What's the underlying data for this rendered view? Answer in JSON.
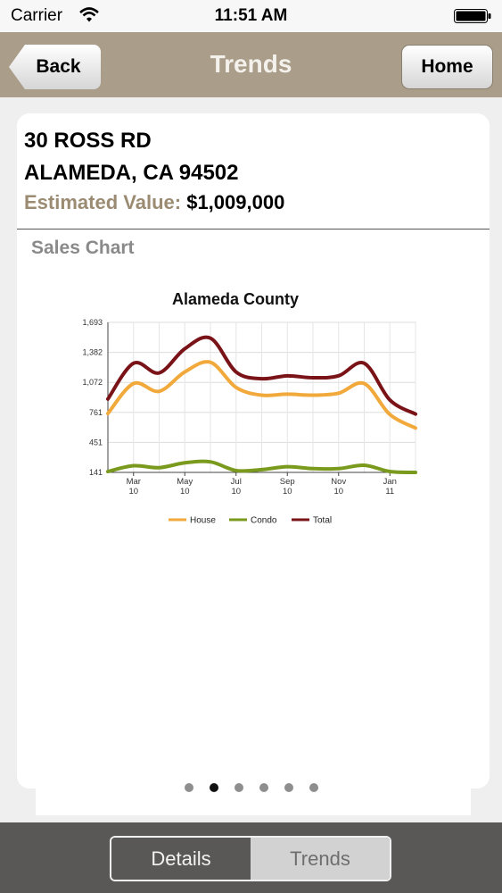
{
  "status_bar": {
    "carrier": "Carrier",
    "time": "11:51 AM",
    "icons": [
      "wifi-icon",
      "battery-icon"
    ]
  },
  "nav": {
    "title": "Trends",
    "back_label": "Back",
    "home_label": "Home"
  },
  "property": {
    "address_line1": "30  ROSS RD",
    "address_line2": "ALAMEDA, CA 94502",
    "estimated_label": "Estimated Value:",
    "estimated_value": "$1,009,000"
  },
  "section": {
    "title": "Sales Chart"
  },
  "chart_data": {
    "type": "line",
    "title": "Alameda County",
    "xlabel": "",
    "ylabel": "",
    "ylim": [
      141,
      1693
    ],
    "y_ticks": [
      "1,693",
      "1,382",
      "1,072",
      "761",
      "451",
      "141"
    ],
    "x_ticks": [
      {
        "line1": "Mar",
        "line2": "10"
      },
      {
        "line1": "May",
        "line2": "10"
      },
      {
        "line1": "Jul",
        "line2": "10"
      },
      {
        "line1": "Sep",
        "line2": "10"
      },
      {
        "line1": "Nov",
        "line2": "10"
      },
      {
        "line1": "Jan",
        "line2": "11"
      }
    ],
    "x": [
      "Feb 10",
      "Mar 10",
      "Apr 10",
      "May 10",
      "Jun 10",
      "Jul 10",
      "Aug 10",
      "Sep 10",
      "Oct 10",
      "Nov 10",
      "Dec 10",
      "Jan 11",
      "Feb 11"
    ],
    "grid": true,
    "legend_position": "bottom",
    "series": [
      {
        "name": "House",
        "color": "#f2a93b",
        "values": [
          750,
          1060,
          980,
          1180,
          1280,
          1020,
          940,
          950,
          940,
          960,
          1060,
          740,
          600
        ]
      },
      {
        "name": "Condo",
        "color": "#7a9a1e",
        "values": [
          150,
          210,
          190,
          240,
          250,
          160,
          170,
          200,
          180,
          180,
          215,
          150,
          141
        ]
      },
      {
        "name": "Total",
        "color": "#7a1318",
        "values": [
          900,
          1270,
          1170,
          1420,
          1530,
          1180,
          1110,
          1140,
          1120,
          1140,
          1270,
          890,
          745
        ]
      }
    ]
  },
  "pager": {
    "count": 6,
    "active_index": 1
  },
  "tabs": {
    "details_label": "Details",
    "trends_label": "Trends"
  },
  "colors": {
    "nav_bg": "#aa9d89",
    "accent_label": "#9b8b72",
    "bottom_bar": "#5a5856"
  }
}
